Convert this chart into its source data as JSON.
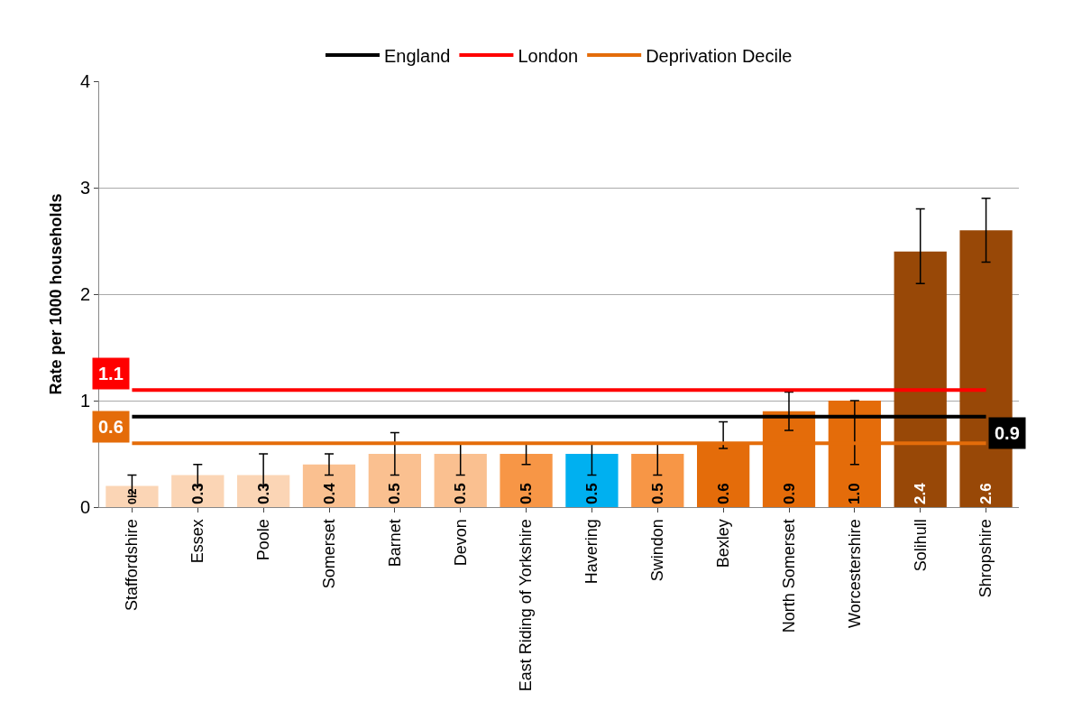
{
  "chart_data": {
    "type": "bar",
    "ylabel": "Rate per 1000 households",
    "categories": [
      "Staffordshire",
      "Essex",
      "Poole",
      "Somerset",
      "Barnet",
      "Devon",
      "East Riding of Yorkshire",
      "Havering",
      "Swindon",
      "Bexley",
      "North Somerset",
      "Worcestershire",
      "Solihull",
      "Shropshire"
    ],
    "series": [
      {
        "values": [
          0.2,
          0.3,
          0.3,
          0.4,
          0.5,
          0.5,
          0.5,
          0.5,
          0.5,
          0.6,
          0.9,
          1.0,
          2.4,
          2.6
        ],
        "colors": [
          "#fbd5b5",
          "#fbd5b5",
          "#fbd5b5",
          "#fac090",
          "#fac090",
          "#fac090",
          "#f79646",
          "#00b0f0",
          "#f79646",
          "#e46c0a",
          "#e46c0a",
          "#e46c0a",
          "#984807",
          "#984807"
        ],
        "value_labels": [
          "0.2",
          "0.3",
          "0.3",
          "0.4",
          "0.5",
          "0.5",
          "0.5",
          "0.5",
          "0.5",
          "0.6",
          "0.9",
          "1.0",
          "2.4",
          "2.6"
        ],
        "errors": [
          [
            0.1,
            0.3
          ],
          [
            0.2,
            0.4
          ],
          [
            0.2,
            0.5
          ],
          [
            0.3,
            0.5
          ],
          [
            0.3,
            0.7
          ],
          [
            0.3,
            0.6
          ],
          [
            0.4,
            0.6
          ],
          [
            0.3,
            0.6
          ],
          [
            0.3,
            0.6
          ],
          [
            0.55,
            0.8
          ],
          [
            0.72,
            1.08
          ],
          [
            0.4,
            1.0
          ],
          [
            2.1,
            2.8
          ],
          [
            2.3,
            2.9
          ]
        ]
      },
      {
        "type": "line",
        "name": "England",
        "color": "#000000",
        "values": [
          0.85,
          0.85,
          0.85,
          0.85,
          0.85,
          0.85,
          0.85,
          0.85,
          0.85,
          0.85,
          0.85,
          0.85,
          0.85,
          0.85
        ],
        "value_labels": [
          null,
          null,
          null,
          null,
          null,
          null,
          null,
          null,
          null,
          null,
          null,
          null,
          null,
          "0.9"
        ]
      },
      {
        "type": "line",
        "name": "London",
        "color": "#ff0000",
        "values": [
          1.1,
          1.1,
          1.1,
          1.1,
          1.1,
          1.1,
          1.1,
          1.1,
          1.1,
          1.1,
          1.1,
          1.1,
          1.1,
          1.1
        ],
        "value_labels": [
          "1.1",
          null,
          null,
          null,
          null,
          null,
          null,
          null,
          null,
          null,
          null,
          null,
          null,
          null
        ]
      },
      {
        "type": "line",
        "name": "Deprivation Decile",
        "color": "#e46c0a",
        "values": [
          0.6,
          0.6,
          0.6,
          0.6,
          0.6,
          0.6,
          0.6,
          0.6,
          0.6,
          0.6,
          0.6,
          0.6,
          0.6,
          0.6
        ],
        "value_labels": [
          "0.6",
          null,
          null,
          null,
          null,
          null,
          null,
          null,
          null,
          null,
          null,
          null,
          null,
          null
        ]
      }
    ],
    "ylim": [
      0,
      4
    ],
    "yticks": [
      0,
      1,
      2,
      3,
      4
    ],
    "grid": "y",
    "legend": "top",
    "marker": "none",
    "line_style": "solid"
  }
}
